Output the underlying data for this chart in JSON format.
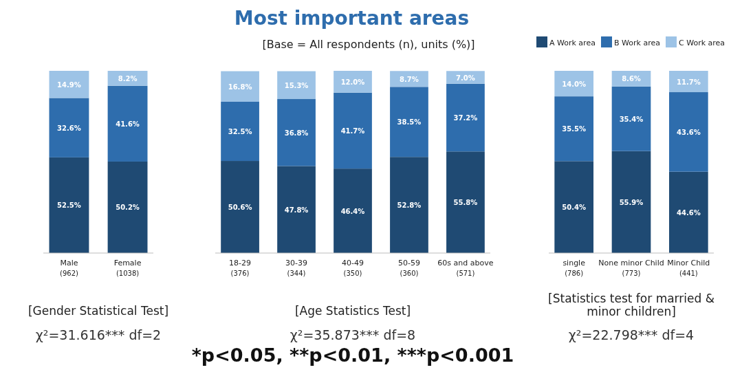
{
  "chart_data": [
    {
      "type": "bar",
      "stacked": true,
      "categories": [
        "Male\n(962)",
        "Female\n(1038)"
      ],
      "series": [
        {
          "color": "#1f4a73",
          "values": [
            52.5,
            50.2
          ],
          "value_labels": [
            "52.5%",
            "50.2%"
          ]
        },
        {
          "color": "#2e6dad",
          "values": [
            32.6,
            41.6
          ],
          "value_labels": [
            "32.6%",
            "41.6%"
          ]
        },
        {
          "color": "#9dc3e6",
          "values": [
            14.9,
            8.2
          ],
          "value_labels": [
            "14.9%",
            "8.2%"
          ]
        }
      ],
      "annotations": [
        "[Gender Statistical Test]",
        "χ²=31.616*** df=2"
      ]
    },
    {
      "type": "bar",
      "stacked": true,
      "title": "Most important areas",
      "subtitle": "[Base = All respondents (n), units (%)]",
      "categories": [
        "18-29\n(376)",
        "30-39\n(344)",
        "40-49\n(350)",
        "50-59\n(360)",
        "60s and above\n(571)"
      ],
      "series": [
        {
          "color": "#1f4a73",
          "values": [
            50.6,
            47.8,
            46.4,
            52.8,
            55.8
          ],
          "value_labels": [
            "50.6%",
            "47.8%",
            "46.4%",
            "52.8%",
            "55.8%"
          ]
        },
        {
          "color": "#2e6dad",
          "values": [
            32.5,
            36.8,
            41.7,
            38.5,
            37.2
          ],
          "value_labels": [
            "32.5%",
            "36.8%",
            "41.7%",
            "38.5%",
            "37.2%"
          ]
        },
        {
          "color": "#9dc3e6",
          "values": [
            16.8,
            15.3,
            12.0,
            8.7,
            7.0
          ],
          "value_labels": [
            "16.8%",
            "15.3%",
            "12.0%",
            "8.7%",
            "7.0%"
          ]
        }
      ],
      "annotations": [
        "[Age Statistics Test]",
        "χ²=35.873*** df=8",
        "*p<0.05, **p<0.01, ***p<0.001"
      ]
    },
    {
      "type": "bar",
      "stacked": true,
      "legend": "top",
      "categories": [
        "single\n(786)",
        "None minor Child\n(773)",
        "Minor Child\n(441)"
      ],
      "series": [
        {
          "name": "A Work area",
          "color": "#1f4a73",
          "values": [
            50.4,
            55.9,
            44.6
          ],
          "value_labels": [
            "50.4%",
            "55.9%",
            "44.6%"
          ]
        },
        {
          "name": "B Work area",
          "color": "#2e6dad",
          "values": [
            35.5,
            35.4,
            43.6
          ],
          "value_labels": [
            "35.5%",
            "35.4%",
            "43.6%"
          ]
        },
        {
          "name": "C Work area",
          "color": "#9dc3e6",
          "values": [
            14.0,
            8.6,
            11.7
          ],
          "value_labels": [
            "14.0%",
            "8.6%",
            "11.7%"
          ]
        }
      ],
      "annotations": [
        "[Statistics test for married & minor children]",
        "χ²=22.798*** df=4"
      ]
    }
  ]
}
